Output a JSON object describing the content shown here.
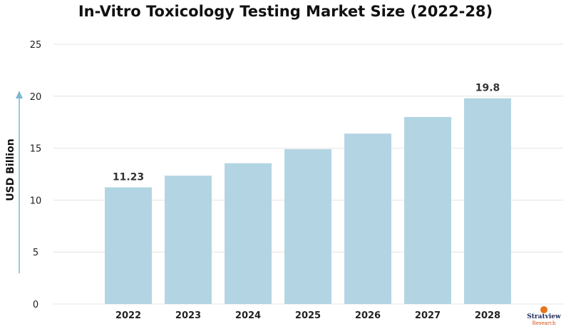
{
  "colors": {
    "bar": "#b3d5e3",
    "grid": "#e4e4e4",
    "axis_arrow": "#7fb7d3",
    "text": "#222222"
  },
  "chart_data": {
    "type": "bar",
    "title": "In-Vitro Toxicology Testing Market Size (2022-28)",
    "xlabel": "",
    "ylabel": "USD Billion",
    "categories": [
      "2022",
      "2023",
      "2024",
      "2025",
      "2026",
      "2027",
      "2028"
    ],
    "values": [
      11.23,
      12.35,
      13.55,
      14.9,
      16.4,
      18.0,
      19.8
    ],
    "data_labels": [
      "11.23",
      "",
      "",
      "",
      "",
      "",
      "19.8"
    ],
    "ylim": [
      0,
      25
    ],
    "yticks": [
      0,
      5,
      10,
      15,
      20,
      25
    ],
    "grid": true,
    "legend": "none"
  },
  "logo": {
    "top": "Stratview",
    "bottom": "Research"
  }
}
